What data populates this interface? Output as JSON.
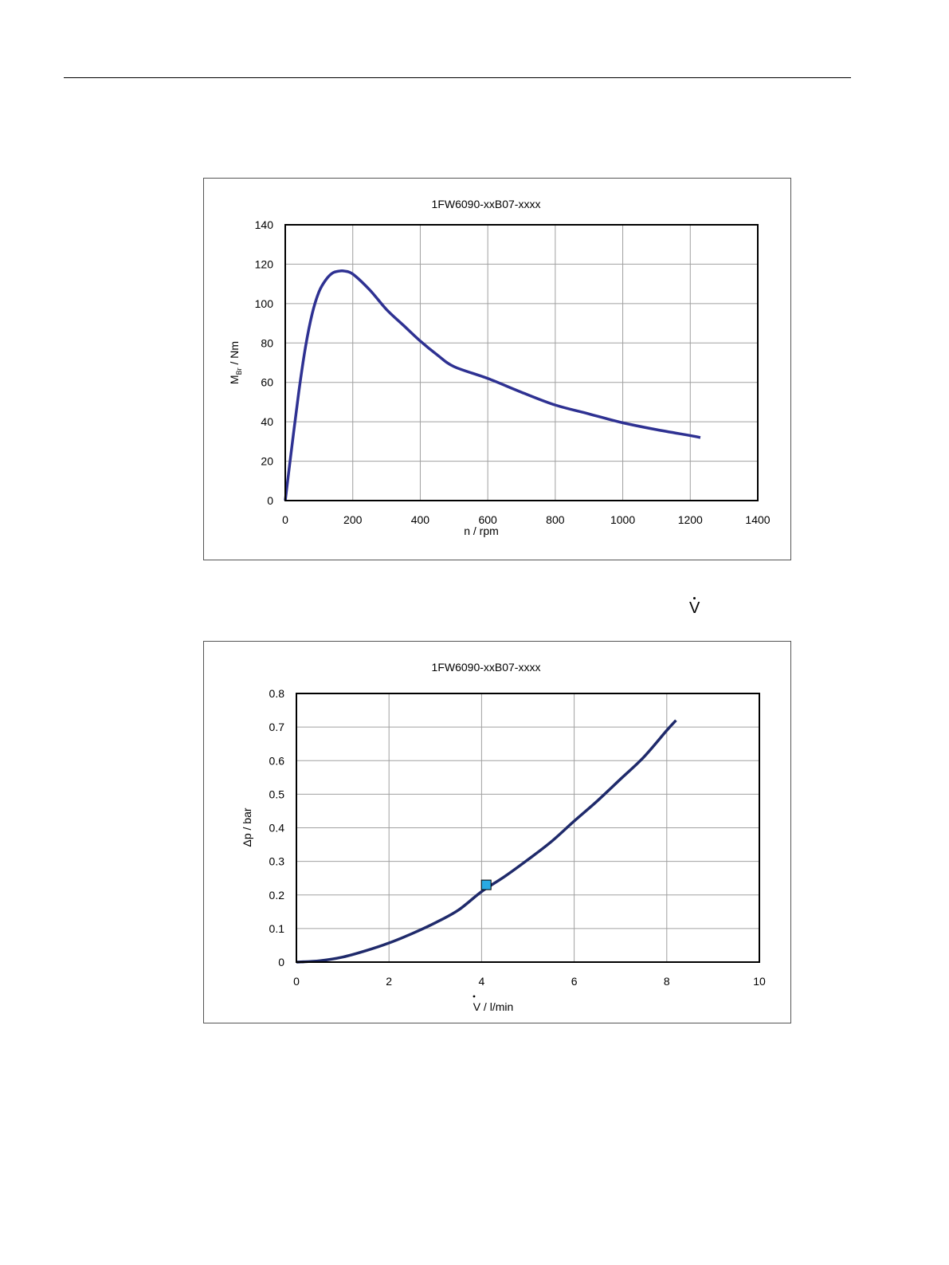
{
  "vdot_symbol": "V",
  "colors": {
    "curve": "#2e3192",
    "curve2": "#1f2a6b",
    "marker": "#29abe2",
    "grid": "#a0a0a0"
  },
  "chart_data": [
    {
      "type": "line",
      "title": "1FW6090-xxB07-xxxx",
      "xlabel": "n / rpm",
      "ylabel": "M / Nm",
      "ylabel_subscript": "Br",
      "xlim": [
        0,
        1400
      ],
      "ylim": [
        0,
        140
      ],
      "xticks": [
        0,
        200,
        400,
        600,
        800,
        1000,
        1200,
        1400
      ],
      "yticks": [
        0,
        20,
        40,
        60,
        80,
        100,
        120,
        140
      ],
      "grid": true,
      "series": [
        {
          "x": [
            0,
            20,
            40,
            60,
            80,
            100,
            120,
            140,
            160,
            175,
            200,
            250,
            300,
            350,
            400,
            450,
            500,
            600,
            700,
            800,
            900,
            1000,
            1100,
            1200,
            1230
          ],
          "y": [
            0,
            28,
            55,
            78,
            95,
            106,
            112,
            115.5,
            116.5,
            116.5,
            115,
            107,
            97,
            89,
            81,
            74,
            68,
            62,
            55,
            48.5,
            44,
            39.5,
            36,
            33,
            32
          ]
        }
      ]
    },
    {
      "type": "line",
      "title": "1FW6090-xxB07-xxxx",
      "xlabel": "V / l/min",
      "ylabel": "Δp / bar",
      "xlim": [
        0,
        10
      ],
      "ylim": [
        0,
        0.8
      ],
      "xticks": [
        0,
        2,
        4,
        6,
        8,
        10
      ],
      "yticks": [
        0,
        0.1,
        0.2,
        0.3,
        0.4,
        0.5,
        0.6,
        0.7,
        0.8
      ],
      "grid": true,
      "series": [
        {
          "x": [
            0,
            0.5,
            1,
            1.5,
            2,
            2.5,
            3,
            3.5,
            4,
            4.5,
            5,
            5.5,
            6,
            6.5,
            7,
            7.5,
            8,
            8.2
          ],
          "y": [
            0,
            0.004,
            0.015,
            0.034,
            0.057,
            0.085,
            0.117,
            0.155,
            0.21,
            0.255,
            0.305,
            0.358,
            0.42,
            0.48,
            0.545,
            0.61,
            0.69,
            0.72
          ]
        }
      ],
      "marker_point": {
        "x": 4.1,
        "y": 0.23
      }
    }
  ]
}
